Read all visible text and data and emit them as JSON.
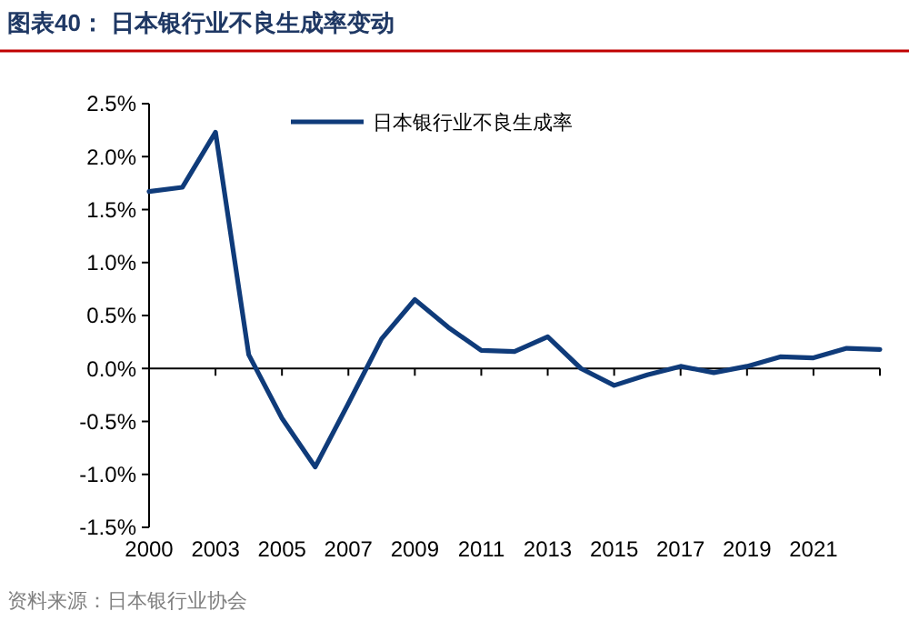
{
  "chart_data": {
    "type": "line",
    "title": "图表40：  日本银行业不良生成率变动",
    "annotations": [
      "资料来源：日本银行业协会"
    ],
    "categories": [
      "2000",
      null,
      "2003",
      null,
      "2005",
      null,
      "2007",
      null,
      "2009",
      null,
      "2011",
      null,
      "2013",
      null,
      "2015",
      null,
      "2017",
      null,
      "2019",
      null,
      "2021",
      null,
      null
    ],
    "series": [
      {
        "name": "日本银行业不良生成率",
        "color": "#0f3b7a",
        "values": [
          1.67,
          1.71,
          2.23,
          0.13,
          -0.47,
          -0.93,
          -0.33,
          0.28,
          0.65,
          0.39,
          0.17,
          0.16,
          0.3,
          0,
          -0.16,
          -0.06,
          0.02,
          -0.04,
          0.02,
          0.11,
          0.1,
          0.19,
          0.18
        ]
      }
    ],
    "ylim": [
      -1.5,
      2.5
    ],
    "yticks": [
      {
        "value": 2.5,
        "label": "2.5%"
      },
      {
        "value": 2,
        "label": "2.0%"
      },
      {
        "value": 1.5,
        "label": "1.5%"
      },
      {
        "value": 1,
        "label": "1.0%"
      },
      {
        "value": 0.5,
        "label": "0.5%"
      },
      {
        "value": 0,
        "label": "0.0%"
      },
      {
        "value": -0.5,
        "label": "-0.5%"
      },
      {
        "value": -1,
        "label": "-1.0%"
      },
      {
        "value": -1.5,
        "label": "-1.5%"
      }
    ],
    "legend": "top",
    "marker": "none",
    "line_style": "solid"
  }
}
